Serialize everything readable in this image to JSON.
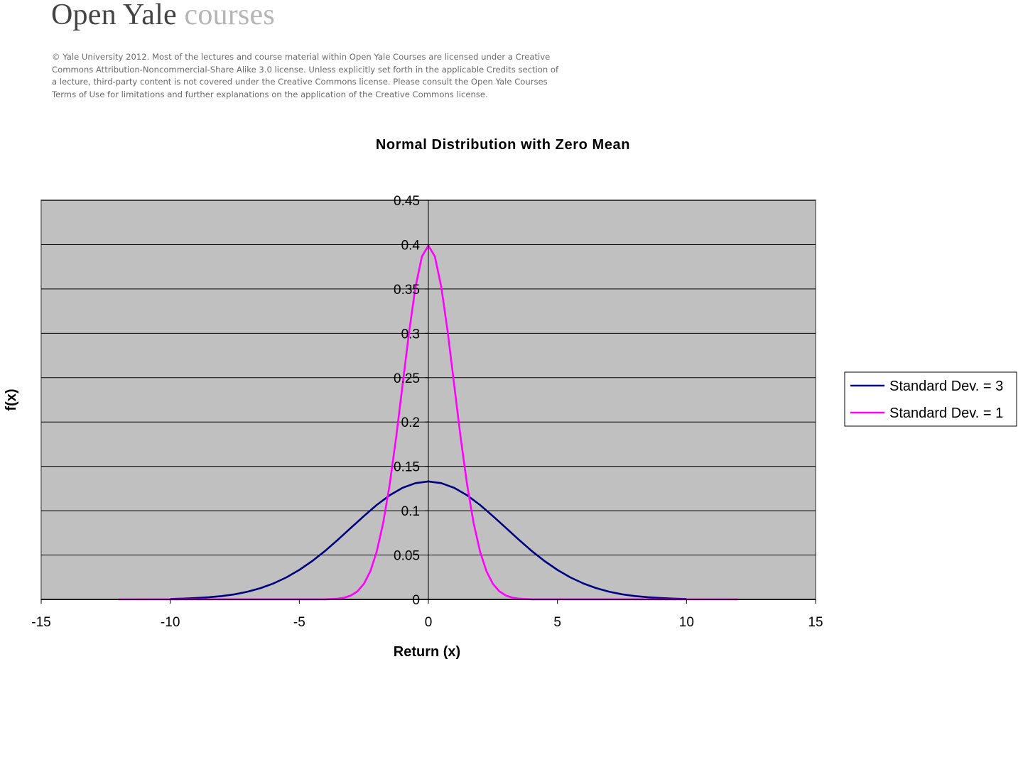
{
  "header": {
    "brand_open_yale": "Open Yale",
    "brand_courses": "courses",
    "license_text": "© Yale University 2012. Most of the lectures and course material within Open Yale Courses are licensed under a Creative Commons Attribution-Noncommercial-Share Alike 3.0 license. Unless explicitly set forth in the applicable Credits section of a lecture, third-party content is not covered under the Creative Commons license. Please consult the Open Yale Courses Terms of Use for limitations and further explanations on the application of the Creative Commons license."
  },
  "chart_data": {
    "type": "line",
    "title": "Normal Distribution with Zero Mean",
    "xlabel": "Return (x)",
    "ylabel": "f(x)",
    "xlim": [
      -15,
      15
    ],
    "ylim": [
      0,
      0.45
    ],
    "x_ticks": [
      -15,
      -10,
      -5,
      0,
      5,
      10,
      15
    ],
    "x_tick_labels": [
      "-15",
      "-10",
      "-5",
      "0",
      "5",
      "10",
      "15"
    ],
    "y_ticks": [
      0,
      0.05,
      0.1,
      0.15,
      0.2,
      0.25,
      0.3,
      0.35,
      0.4,
      0.45
    ],
    "y_tick_labels": [
      "0",
      "0.05",
      "0.1",
      "0.15",
      "0.2",
      "0.25",
      "0.3",
      "0.35",
      "0.4",
      "0.45"
    ],
    "grid": "horizontal major gridlines",
    "plot_background": "#c0c0c0",
    "legend_position": "right",
    "series": [
      {
        "name": "Standard Dev. = 3",
        "color": "#000080",
        "x": [
          -10,
          -9.5,
          -9,
          -8.5,
          -8,
          -7.5,
          -7,
          -6.5,
          -6,
          -5.5,
          -5,
          -4.5,
          -4,
          -3.5,
          -3,
          -2.5,
          -2,
          -1.5,
          -1,
          -0.5,
          0,
          0.5,
          1,
          1.5,
          2,
          2.5,
          3,
          3.5,
          4,
          4.5,
          5,
          5.5,
          6,
          6.5,
          7,
          7.5,
          8,
          8.5,
          9,
          9.5,
          10
        ],
        "y": [
          0.0005,
          0.0009,
          0.0015,
          0.0025,
          0.0038,
          0.0058,
          0.0087,
          0.0127,
          0.018,
          0.0248,
          0.0332,
          0.0432,
          0.0547,
          0.0674,
          0.0807,
          0.0939,
          0.1065,
          0.1174,
          0.1258,
          0.1311,
          0.133,
          0.1311,
          0.1258,
          0.1174,
          0.1065,
          0.0939,
          0.0807,
          0.0674,
          0.0547,
          0.0432,
          0.0332,
          0.0248,
          0.018,
          0.0127,
          0.0087,
          0.0058,
          0.0038,
          0.0025,
          0.0015,
          0.0009,
          0.0005
        ]
      },
      {
        "name": "Standard Dev. = 1",
        "color": "#ff00ff",
        "x": [
          -12,
          -4,
          -3.5,
          -3.25,
          -3,
          -2.75,
          -2.5,
          -2.25,
          -2,
          -1.75,
          -1.5,
          -1.25,
          -1,
          -0.75,
          -0.5,
          -0.25,
          0,
          0.25,
          0.5,
          0.75,
          1,
          1.25,
          1.5,
          1.75,
          2,
          2.25,
          2.5,
          2.75,
          3,
          3.25,
          3.5,
          4,
          12
        ],
        "y": [
          0,
          0.0001,
          0.0009,
          0.002,
          0.0044,
          0.0091,
          0.0175,
          0.0317,
          0.054,
          0.0863,
          0.1295,
          0.1826,
          0.242,
          0.3011,
          0.3521,
          0.3867,
          0.3989,
          0.3867,
          0.3521,
          0.3011,
          0.242,
          0.1826,
          0.1295,
          0.0863,
          0.054,
          0.0317,
          0.0175,
          0.0091,
          0.0044,
          0.002,
          0.0009,
          0.0001,
          0
        ]
      }
    ]
  }
}
